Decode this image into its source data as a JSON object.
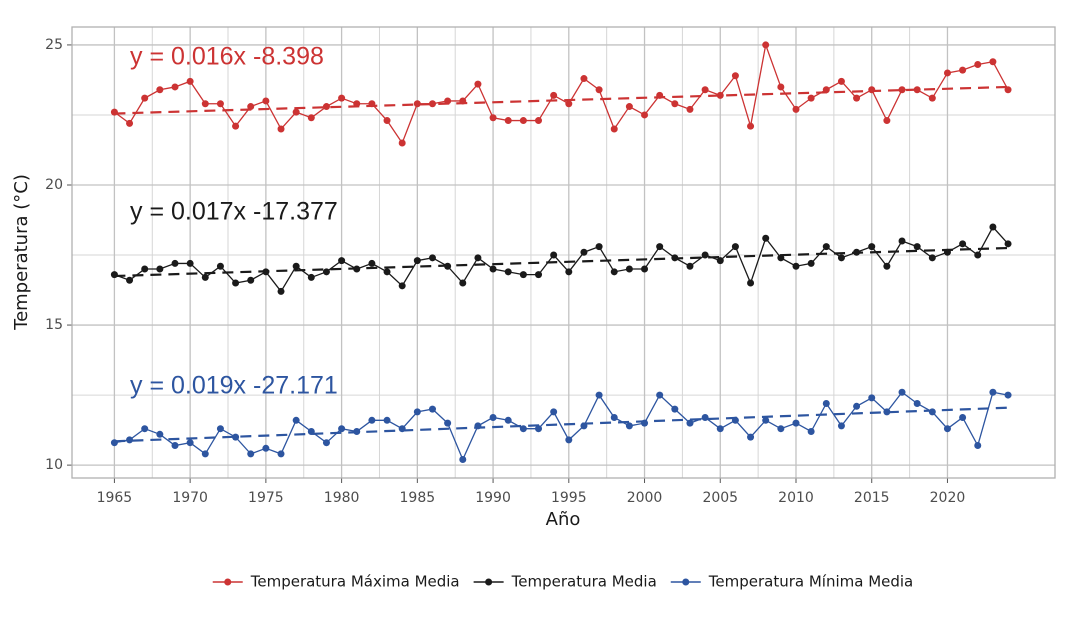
{
  "chart_data": {
    "type": "line",
    "x_label": "Año",
    "y_label": "Temperatura (°C)",
    "x": [
      1965,
      1966,
      1967,
      1968,
      1969,
      1970,
      1971,
      1972,
      1973,
      1974,
      1975,
      1976,
      1977,
      1978,
      1979,
      1980,
      1981,
      1982,
      1983,
      1984,
      1985,
      1986,
      1987,
      1988,
      1989,
      1990,
      1991,
      1992,
      1993,
      1994,
      1995,
      1996,
      1997,
      1998,
      1999,
      2000,
      2001,
      2002,
      2003,
      2004,
      2005,
      2006,
      2007,
      2008,
      2009,
      2010,
      2011,
      2012,
      2013,
      2014,
      2015,
      2016,
      2017,
      2018,
      2019,
      2020,
      2021,
      2022,
      2023,
      2024
    ],
    "trend_x": [
      1965,
      2024
    ],
    "series": [
      {
        "name": "Temperatura Máxima Media",
        "color": "#cc3333",
        "values": [
          22.6,
          22.2,
          23.1,
          23.4,
          23.5,
          23.7,
          22.9,
          22.9,
          22.1,
          22.8,
          23.0,
          22.0,
          22.6,
          22.4,
          22.8,
          23.1,
          22.9,
          22.9,
          22.3,
          21.5,
          22.9,
          22.9,
          23.0,
          23.0,
          23.6,
          22.4,
          22.3,
          22.3,
          22.3,
          23.2,
          22.9,
          23.8,
          23.4,
          22.0,
          22.8,
          22.5,
          23.2,
          22.9,
          22.7,
          23.4,
          23.2,
          23.9,
          22.1,
          25.0,
          23.5,
          22.7,
          23.1,
          23.4,
          23.7,
          23.1,
          23.4,
          22.3,
          23.4,
          23.4,
          23.1,
          24.0,
          24.1,
          24.3,
          24.4,
          23.4
        ],
        "trend": [
          22.55,
          23.5
        ]
      },
      {
        "name": "Temperatura Media",
        "color": "#1a1a1a",
        "values": [
          16.8,
          16.6,
          17.0,
          17.0,
          17.2,
          17.2,
          16.7,
          17.1,
          16.5,
          16.6,
          16.9,
          16.2,
          17.1,
          16.7,
          16.9,
          17.3,
          17.0,
          17.2,
          16.9,
          16.4,
          17.3,
          17.4,
          17.1,
          16.5,
          17.4,
          17.0,
          16.9,
          16.8,
          16.8,
          17.5,
          16.9,
          17.6,
          17.8,
          16.9,
          17.0,
          17.0,
          17.8,
          17.4,
          17.1,
          17.5,
          17.3,
          17.8,
          16.5,
          18.1,
          17.4,
          17.1,
          17.2,
          17.8,
          17.4,
          17.6,
          17.8,
          17.1,
          18.0,
          17.8,
          17.4,
          17.6,
          17.9,
          17.5,
          18.5,
          17.9
        ],
        "trend": [
          16.75,
          17.75
        ]
      },
      {
        "name": "Temperatura Mínima Media",
        "color": "#2d55a0",
        "values": [
          10.8,
          10.9,
          11.3,
          11.1,
          10.7,
          10.8,
          10.4,
          11.3,
          11.0,
          10.4,
          10.6,
          10.4,
          11.6,
          11.2,
          10.8,
          11.3,
          11.2,
          11.6,
          11.6,
          11.3,
          11.9,
          12.0,
          11.5,
          10.2,
          11.4,
          11.7,
          11.6,
          11.3,
          11.3,
          11.9,
          10.9,
          11.4,
          12.5,
          11.7,
          11.4,
          11.5,
          12.5,
          12.0,
          11.5,
          11.7,
          11.3,
          11.6,
          11.0,
          11.6,
          11.3,
          11.5,
          11.2,
          12.2,
          11.4,
          12.1,
          12.4,
          11.9,
          12.6,
          12.2,
          11.9,
          11.3,
          11.7,
          10.7,
          12.6,
          12.5
        ],
        "trend": [
          10.85,
          12.05
        ]
      }
    ],
    "annotations": [
      {
        "text": "y = 0.016x -8.398",
        "color": "#cc3333"
      },
      {
        "text": "y = 0.017x -17.377",
        "color": "#1a1a1a"
      },
      {
        "text": "y = 0.019x -27.171",
        "color": "#2d55a0"
      }
    ],
    "xlim": [
      1962.2,
      2027.1
    ],
    "ylim": [
      9.54,
      25.64
    ],
    "xticks": [
      1965,
      1970,
      1975,
      1980,
      1985,
      1990,
      1995,
      2000,
      2005,
      2010,
      2015,
      2020
    ],
    "yticks": [
      10,
      15,
      20,
      25
    ],
    "grid": true,
    "legend": "bottom"
  }
}
